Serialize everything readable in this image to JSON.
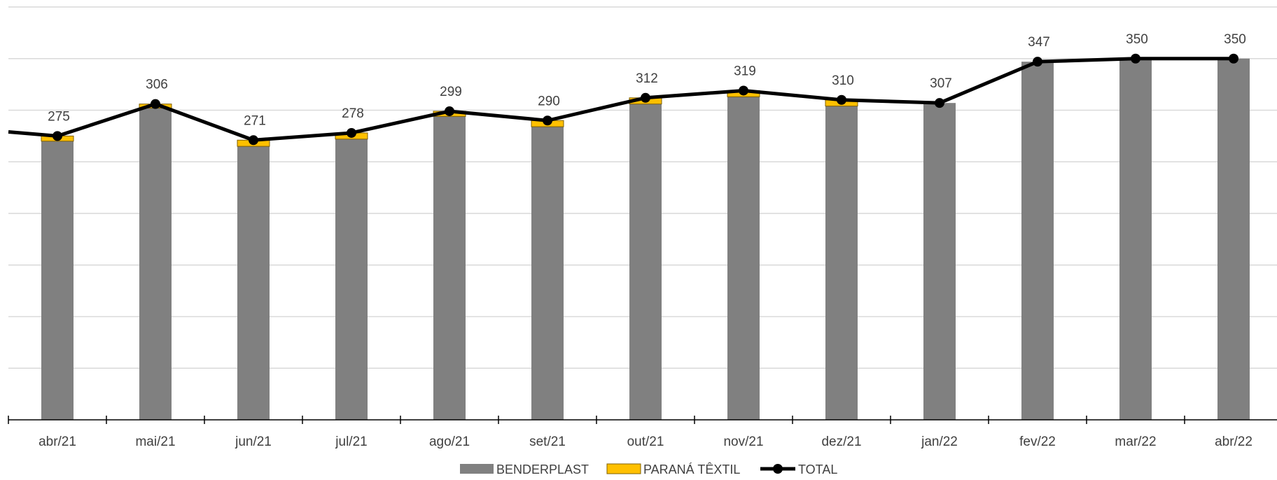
{
  "chart_data": {
    "type": "bar",
    "stacked": true,
    "title": "",
    "xlabel": "",
    "ylabel": "",
    "ylim": [
      0,
      400
    ],
    "grid": true,
    "legend_position": "bottom",
    "categories": [
      "abr/21",
      "mai/21",
      "jun/21",
      "jul/21",
      "ago/21",
      "set/21",
      "out/21",
      "nov/21",
      "dez/21",
      "jan/22",
      "fev/22",
      "mar/22",
      "abr/22"
    ],
    "series": [
      {
        "name": "BENDERPLAST",
        "kind": "bar",
        "color": "#808080",
        "values": [
          270,
          302,
          265,
          272,
          294,
          284,
          306,
          313,
          304,
          307,
          347,
          350,
          350
        ]
      },
      {
        "name": "PARANÁ TÊXTIL",
        "kind": "bar",
        "color": "#FFC000",
        "values": [
          5,
          4,
          6,
          6,
          5,
          6,
          6,
          6,
          6,
          0,
          0,
          0,
          0
        ]
      },
      {
        "name": "TOTAL",
        "kind": "line",
        "color": "#000000",
        "values": [
          275,
          306,
          271,
          278,
          299,
          290,
          312,
          319,
          310,
          307,
          347,
          350,
          350
        ],
        "lead_in_value": 279
      }
    ],
    "data_labels": [
      "275",
      "306",
      "271",
      "278",
      "299",
      "290",
      "312",
      "319",
      "310",
      "307",
      "347",
      "350",
      "350"
    ]
  }
}
